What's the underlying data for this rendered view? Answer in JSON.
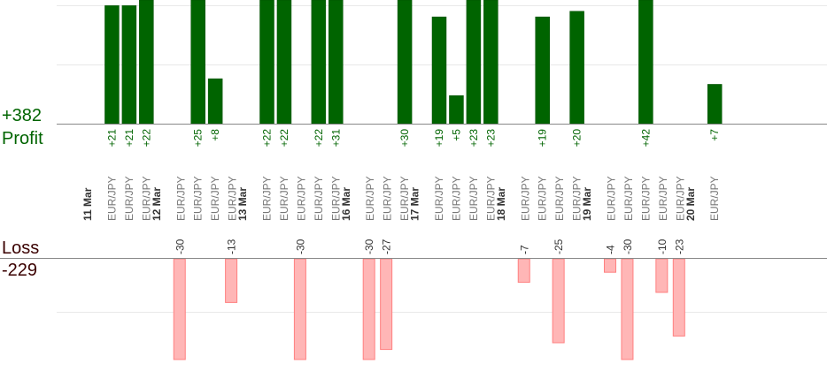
{
  "chart_data": {
    "type": "bar",
    "pair": "EUR/JPY",
    "profit": {
      "label": "Profit",
      "total": "+382",
      "color": "#006400"
    },
    "loss": {
      "label": "Loss",
      "total": "-229",
      "color": "#ffb6b6"
    },
    "dates": [
      "11 Mar",
      "12 Mar",
      "13 Mar",
      "16 Mar",
      "17 Mar",
      "18 Mar",
      "19 Mar",
      "20 Mar"
    ],
    "trades": [
      {
        "date": "11 Mar",
        "value": 21
      },
      {
        "date": "11 Mar",
        "value": 21
      },
      {
        "date": "11 Mar",
        "value": 22
      },
      {
        "date": "12 Mar",
        "value": -30
      },
      {
        "date": "12 Mar",
        "value": 25
      },
      {
        "date": "12 Mar",
        "value": 8
      },
      {
        "date": "12 Mar",
        "value": -13
      },
      {
        "date": "13 Mar",
        "value": 22
      },
      {
        "date": "13 Mar",
        "value": 22
      },
      {
        "date": "13 Mar",
        "value": -30
      },
      {
        "date": "13 Mar",
        "value": 22
      },
      {
        "date": "13 Mar",
        "value": 31
      },
      {
        "date": "16 Mar",
        "value": -30
      },
      {
        "date": "16 Mar",
        "value": -27
      },
      {
        "date": "16 Mar",
        "value": 30
      },
      {
        "date": "17 Mar",
        "value": 19
      },
      {
        "date": "17 Mar",
        "value": 5
      },
      {
        "date": "17 Mar",
        "value": 23
      },
      {
        "date": "17 Mar",
        "value": 23
      },
      {
        "date": "18 Mar",
        "value": -7
      },
      {
        "date": "18 Mar",
        "value": 19
      },
      {
        "date": "18 Mar",
        "value": -25
      },
      {
        "date": "18 Mar",
        "value": 20
      },
      {
        "date": "19 Mar",
        "value": -4
      },
      {
        "date": "19 Mar",
        "value": -30
      },
      {
        "date": "19 Mar",
        "value": 42
      },
      {
        "date": "19 Mar",
        "value": -10
      },
      {
        "date": "19 Mar",
        "value": -23
      },
      {
        "date": "20 Mar",
        "value": 7
      }
    ]
  }
}
